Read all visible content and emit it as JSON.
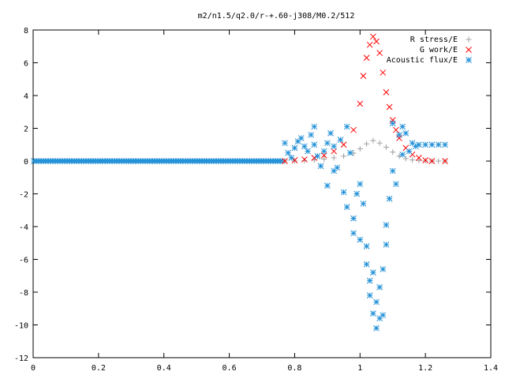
{
  "chart_data": {
    "type": "scatter",
    "title": "m2/n1.5/q2.0/r-+.60-j308/M0.2/512",
    "xlabel": "",
    "ylabel": "",
    "xlim": [
      0,
      1.4
    ],
    "ylim": [
      -12,
      8
    ],
    "x_ticks": [
      "0",
      "0.2",
      "0.4",
      "0.6",
      "0.8",
      "1",
      "1.2",
      "1.4"
    ],
    "y_ticks": [
      "8",
      "6",
      "4",
      "2",
      "0",
      "-2",
      "-4",
      "-6",
      "-8",
      "-10",
      "-12"
    ],
    "grid": false,
    "legend_position": "top-right",
    "series": [
      {
        "name": "R stress/E",
        "marker": "plus",
        "color": "#a0a0a0",
        "points": [
          [
            0.77,
            0.0
          ],
          [
            0.8,
            0.01
          ],
          [
            0.83,
            0.03
          ],
          [
            0.86,
            0.07
          ],
          [
            0.89,
            0.12
          ],
          [
            0.92,
            0.2
          ],
          [
            0.95,
            0.3
          ],
          [
            0.98,
            0.48
          ],
          [
            1.0,
            0.75
          ],
          [
            1.02,
            1.05
          ],
          [
            1.04,
            1.25
          ],
          [
            1.06,
            1.1
          ],
          [
            1.08,
            0.85
          ],
          [
            1.1,
            0.55
          ],
          [
            1.12,
            0.3
          ],
          [
            1.14,
            0.15
          ],
          [
            1.16,
            0.07
          ],
          [
            1.18,
            0.03
          ],
          [
            1.2,
            0.01
          ],
          [
            1.22,
            0.0
          ],
          [
            1.24,
            0.0
          ],
          [
            1.26,
            0.0
          ]
        ]
      },
      {
        "name": "G work/E",
        "marker": "cross",
        "color": "#ff0000",
        "points": [
          [
            0.77,
            0.0
          ],
          [
            0.8,
            0.05
          ],
          [
            0.83,
            0.1
          ],
          [
            0.86,
            0.2
          ],
          [
            0.89,
            0.35
          ],
          [
            0.92,
            0.6
          ],
          [
            0.95,
            1.0
          ],
          [
            0.98,
            1.9
          ],
          [
            1.0,
            3.5
          ],
          [
            1.01,
            5.2
          ],
          [
            1.02,
            6.3
          ],
          [
            1.03,
            7.1
          ],
          [
            1.04,
            7.6
          ],
          [
            1.05,
            7.3
          ],
          [
            1.06,
            6.6
          ],
          [
            1.07,
            5.4
          ],
          [
            1.08,
            4.2
          ],
          [
            1.09,
            3.3
          ],
          [
            1.1,
            2.5
          ],
          [
            1.11,
            1.9
          ],
          [
            1.12,
            1.4
          ],
          [
            1.14,
            0.8
          ],
          [
            1.16,
            0.4
          ],
          [
            1.18,
            0.2
          ],
          [
            1.2,
            0.05
          ],
          [
            1.22,
            0.0
          ],
          [
            1.26,
            0.0
          ]
        ]
      },
      {
        "name": "Acoustic flux/E",
        "marker": "star",
        "color": "#1f8fd6",
        "points": [
          [
            0.77,
            1.1
          ],
          [
            0.78,
            0.5
          ],
          [
            0.79,
            0.2
          ],
          [
            0.8,
            0.8
          ],
          [
            0.81,
            1.2
          ],
          [
            0.82,
            1.4
          ],
          [
            0.83,
            0.9
          ],
          [
            0.84,
            0.6
          ],
          [
            0.85,
            1.6
          ],
          [
            0.86,
            2.1
          ],
          [
            0.86,
            1.0
          ],
          [
            0.87,
            0.3
          ],
          [
            0.88,
            -0.3
          ],
          [
            0.89,
            0.6
          ],
          [
            0.9,
            1.1
          ],
          [
            0.9,
            -1.5
          ],
          [
            0.91,
            1.7
          ],
          [
            0.92,
            0.9
          ],
          [
            0.92,
            -0.6
          ],
          [
            0.93,
            -0.4
          ],
          [
            0.94,
            1.3
          ],
          [
            0.95,
            -1.9
          ],
          [
            0.96,
            2.1
          ],
          [
            0.96,
            -2.8
          ],
          [
            0.97,
            0.5
          ],
          [
            0.98,
            -3.5
          ],
          [
            0.98,
            -4.4
          ],
          [
            0.99,
            -2.0
          ],
          [
            1.0,
            -1.4
          ],
          [
            1.0,
            -4.8
          ],
          [
            1.01,
            -2.6
          ],
          [
            1.02,
            -5.2
          ],
          [
            1.02,
            -6.3
          ],
          [
            1.03,
            -7.3
          ],
          [
            1.03,
            -8.2
          ],
          [
            1.04,
            -6.8
          ],
          [
            1.04,
            -9.3
          ],
          [
            1.05,
            -8.6
          ],
          [
            1.05,
            -10.2
          ],
          [
            1.06,
            -7.7
          ],
          [
            1.06,
            -9.6
          ],
          [
            1.07,
            -9.4
          ],
          [
            1.07,
            -6.6
          ],
          [
            1.08,
            -5.1
          ],
          [
            1.08,
            -3.9
          ],
          [
            1.09,
            -2.3
          ],
          [
            1.1,
            -0.6
          ],
          [
            1.1,
            2.3
          ],
          [
            1.11,
            -1.4
          ],
          [
            1.12,
            1.6
          ],
          [
            1.13,
            0.4
          ],
          [
            1.13,
            2.1
          ],
          [
            1.14,
            1.7
          ],
          [
            1.15,
            0.6
          ],
          [
            1.16,
            1.1
          ],
          [
            1.17,
            0.9
          ],
          [
            1.18,
            1.0
          ],
          [
            1.2,
            1.0
          ],
          [
            1.22,
            1.0
          ],
          [
            1.24,
            1.0
          ],
          [
            1.26,
            1.0
          ]
        ]
      }
    ]
  }
}
